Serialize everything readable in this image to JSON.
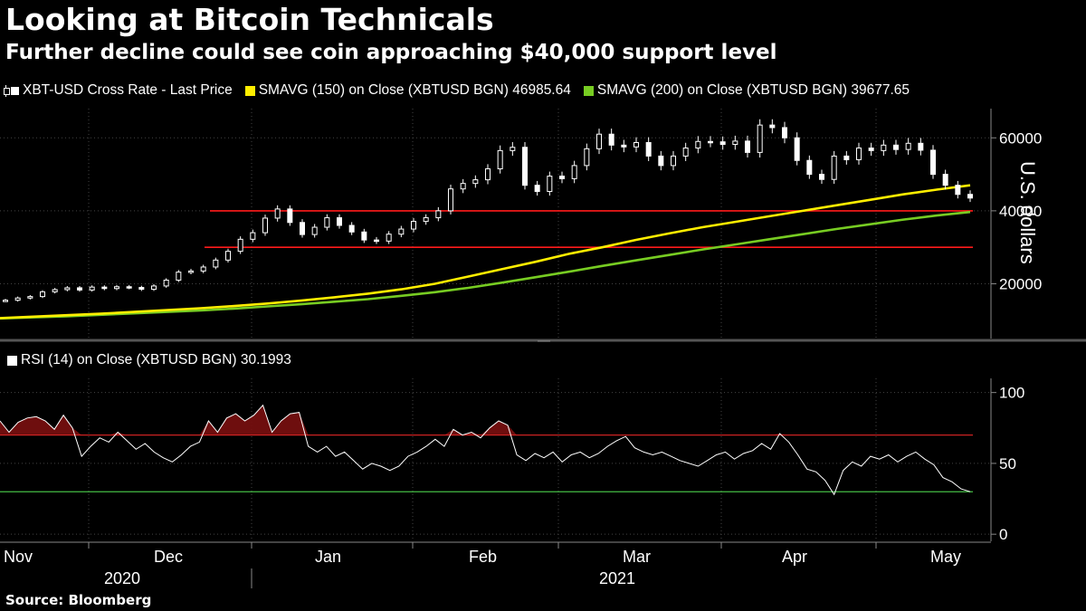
{
  "title": "Looking at Bitcoin Technicals",
  "subtitle": "Further decline could see coin approaching $40,000 support level",
  "source": "Source: Bloomberg",
  "colors": {
    "price": "#ffffff",
    "sma150": "#ffee00",
    "sma200": "#77cc22",
    "support": "#ff1a1a",
    "rsi_upper": "#cc2222",
    "rsi_lower": "#44bb44"
  },
  "legend": {
    "price": "XBT-USD Cross Rate - Last Price",
    "sma150": "SMAVG (150)  on Close (XBTUSD BGN) 46985.64",
    "sma200": "SMAVG (200)  on Close (XBTUSD BGN) 39677.65",
    "rsi": "RSI (14)  on Close (XBTUSD BGN) 30.1993"
  },
  "chart_data": [
    {
      "type": "line",
      "panel": "price",
      "ylabel": "U.S. dollars",
      "ylim": [
        5000,
        68000
      ],
      "yticks": [
        "60000",
        "40000",
        "20000"
      ],
      "x_month_labels": [
        "Nov",
        "Dec",
        "Jan",
        "Feb",
        "Mar",
        "Apr",
        "May"
      ],
      "x_year_labels": [
        "2020",
        "2021"
      ],
      "horizontal_lines": [
        40000,
        30000
      ],
      "series": [
        {
          "name": "XBT-USD Cross Rate - Last Price",
          "style": "candlestick",
          "values": [
            15500,
            16100,
            16500,
            17800,
            18400,
            18900,
            18300,
            19100,
            18700,
            19200,
            19000,
            18500,
            19400,
            21000,
            23200,
            23500,
            24600,
            26500,
            28900,
            32200,
            34000,
            38000,
            40500,
            36800,
            33500,
            35500,
            38100,
            36000,
            34200,
            32000,
            31700,
            33600,
            35000,
            37100,
            38100,
            40000,
            46000,
            47500,
            48500,
            51500,
            56500,
            57400,
            47000,
            45300,
            49500,
            48800,
            52400,
            57000,
            61000,
            58000,
            57500,
            58700,
            55000,
            52400,
            55000,
            57200,
            59000,
            58900,
            58200,
            59100,
            56000,
            63500,
            62800,
            60000,
            53800,
            50000,
            48600,
            55000,
            54000,
            57200,
            56500,
            58000,
            56800,
            58500,
            56600,
            50000,
            47000,
            44500,
            43500
          ]
        },
        {
          "name": "SMAVG (150)  on Close (XBTUSD BGN) 46985.64",
          "values": [
            10600,
            11000,
            11400,
            11800,
            12300,
            12800,
            13300,
            13900,
            14600,
            15400,
            16300,
            17300,
            18500,
            20000,
            22000,
            24000,
            26000,
            28200,
            30000,
            32000,
            33800,
            35500,
            37000,
            38500,
            40000,
            41500,
            43000,
            44500,
            45800,
            46985
          ]
        },
        {
          "name": "SMAVG (200)  on Close (XBTUSD BGN) 39677.65",
          "values": [
            10500,
            10800,
            11100,
            11500,
            11900,
            12300,
            12700,
            13200,
            13800,
            14400,
            15100,
            15800,
            16700,
            17700,
            18900,
            20300,
            21800,
            23300,
            24900,
            26400,
            27900,
            29400,
            30800,
            32200,
            33600,
            35000,
            36300,
            37600,
            38700,
            39677
          ]
        }
      ]
    },
    {
      "type": "area",
      "panel": "rsi",
      "ylim": [
        -5,
        110
      ],
      "yticks": [
        "100",
        "50",
        "0"
      ],
      "horizontal_lines": [
        70,
        30
      ],
      "series": [
        {
          "name": "RSI (14)  on Close (XBTUSD BGN) 30.1993",
          "values": [
            80,
            72,
            79,
            82,
            83,
            80,
            74,
            84,
            75,
            55,
            62,
            68,
            65,
            72,
            66,
            60,
            64,
            58,
            54,
            51,
            56,
            62,
            65,
            80,
            72,
            82,
            85,
            80,
            84,
            91,
            72,
            80,
            85,
            86,
            62,
            58,
            62,
            55,
            58,
            52,
            46,
            50,
            48,
            45,
            48,
            55,
            58,
            62,
            67,
            62,
            74,
            70,
            72,
            68,
            75,
            80,
            77,
            56,
            52,
            57,
            54,
            58,
            51,
            56,
            58,
            54,
            57,
            62,
            66,
            69,
            61,
            58,
            56,
            58,
            55,
            52,
            50,
            48,
            52,
            56,
            58,
            53,
            57,
            59,
            64,
            60,
            71,
            65,
            56,
            46,
            44,
            38,
            28,
            45,
            51,
            48,
            55,
            53,
            56,
            51,
            55,
            58,
            53,
            49,
            40,
            37,
            32,
            30
          ]
        }
      ]
    }
  ]
}
